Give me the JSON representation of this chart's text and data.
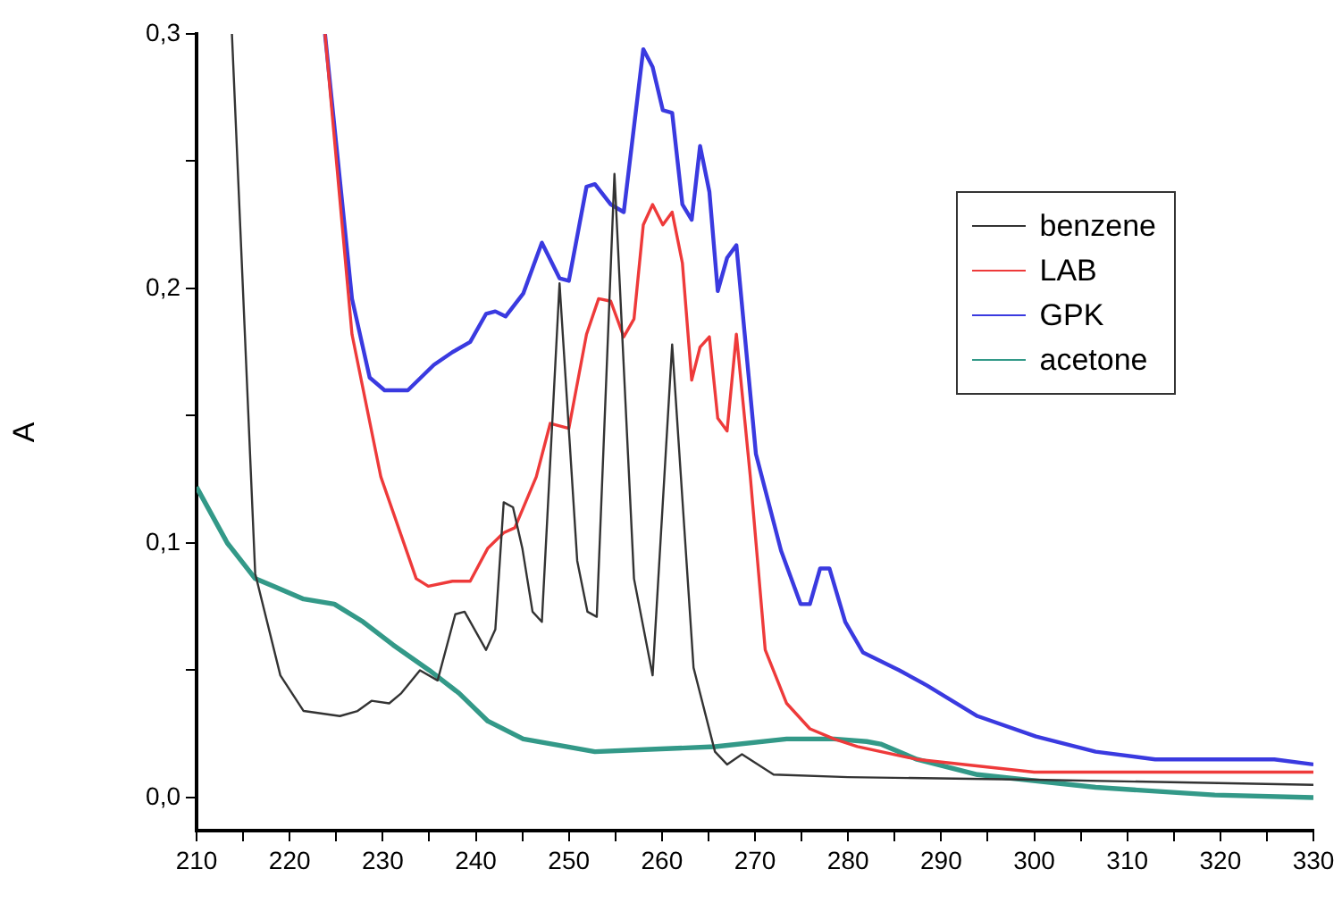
{
  "chart_data": {
    "type": "line",
    "ylabel": "A",
    "xlim": [
      210,
      330
    ],
    "ylim": [
      -0.013,
      0.3
    ],
    "xticks": [
      210,
      {
        "value": 215,
        "label": null
      },
      220,
      {
        "value": 225,
        "label": null
      },
      230,
      {
        "value": 235,
        "label": null
      },
      240,
      {
        "value": 245,
        "label": null
      },
      250,
      {
        "value": 255,
        "label": null
      },
      260,
      {
        "value": 265,
        "label": null
      },
      270,
      {
        "value": 275,
        "label": null
      },
      280,
      {
        "value": 285,
        "label": null
      },
      290,
      {
        "value": 295,
        "label": null
      },
      300,
      {
        "value": 305,
        "label": null
      },
      310,
      {
        "value": 315,
        "label": null
      },
      320,
      {
        "value": 325,
        "label": null
      },
      330
    ],
    "yticks": [
      {
        "value": 0,
        "label": "0,0"
      },
      {
        "value": 0.05,
        "label": null
      },
      {
        "value": 0.1,
        "label": "0,1"
      },
      {
        "value": 0.15,
        "label": null
      },
      {
        "value": 0.2,
        "label": "0,2"
      },
      {
        "value": 0.25,
        "label": null
      },
      {
        "value": 0.3,
        "label": "0,3"
      }
    ],
    "grid": false,
    "legend": "top right",
    "marker": "none",
    "line_style": "solid",
    "series": [
      {
        "name": "benzene",
        "color": "#333333",
        "x": [
          213.8,
          216.3,
          219,
          221.5,
          225.4,
          227.3,
          228.8,
          230.7,
          232,
          234,
          235.9,
          237.8,
          238.8,
          241.1,
          242.1,
          243,
          244,
          245,
          246.1,
          247.1,
          249,
          250.9,
          252,
          253,
          254.9,
          257,
          259,
          261.1,
          263.4,
          265.7,
          267,
          268.6,
          272,
          280,
          300,
          330
        ],
        "values": [
          0.3,
          0.088,
          0.048,
          0.034,
          0.032,
          0.034,
          0.038,
          0.037,
          0.041,
          0.05,
          0.046,
          0.072,
          0.073,
          0.058,
          0.066,
          0.116,
          0.114,
          0.098,
          0.073,
          0.069,
          0.202,
          0.093,
          0.073,
          0.071,
          0.245,
          0.086,
          0.048,
          0.178,
          0.051,
          0.018,
          0.013,
          0.017,
          0.009,
          0.008,
          0.007,
          0.005
        ]
      },
      {
        "name": "LAB",
        "color": "#ee3a3a",
        "x": [
          223.8,
          226.7,
          229.8,
          233.6,
          234.9,
          237.5,
          239.4,
          241.3,
          243,
          244.2,
          246.5,
          248,
          250,
          251.9,
          253.2,
          254.5,
          255.9,
          257,
          258,
          259,
          260.1,
          261.1,
          262.2,
          263.2,
          264.1,
          265.1,
          266,
          267,
          268,
          269.5,
          271.1,
          273.4,
          275.9,
          278.5,
          281,
          287.4,
          300,
          330
        ],
        "values": [
          0.3,
          0.182,
          0.126,
          0.086,
          0.083,
          0.085,
          0.085,
          0.098,
          0.104,
          0.106,
          0.126,
          0.147,
          0.145,
          0.182,
          0.196,
          0.195,
          0.181,
          0.188,
          0.225,
          0.233,
          0.225,
          0.23,
          0.21,
          0.164,
          0.177,
          0.181,
          0.149,
          0.144,
          0.182,
          0.126,
          0.058,
          0.037,
          0.027,
          0.023,
          0.02,
          0.015,
          0.01,
          0.01
        ]
      },
      {
        "name": "GPK",
        "color": "#3a3ae0",
        "x": [
          223.8,
          226.7,
          228.6,
          230.2,
          232.7,
          235.5,
          237.5,
          239.4,
          241.1,
          242.1,
          243.2,
          245.1,
          247.1,
          249,
          250,
          251.9,
          252.8,
          254.5,
          255.9,
          258,
          259,
          260.1,
          261.1,
          262.2,
          263.2,
          264.1,
          265.1,
          266,
          267,
          268,
          270.1,
          272.8,
          274.9,
          275.9,
          277,
          278,
          279.7,
          281.6,
          285.5,
          288.5,
          293.9,
          300.2,
          306.6,
          313,
          325.8,
          330
        ],
        "values": [
          0.3,
          0.196,
          0.165,
          0.16,
          0.16,
          0.17,
          0.175,
          0.179,
          0.19,
          0.191,
          0.189,
          0.198,
          0.218,
          0.204,
          0.203,
          0.24,
          0.241,
          0.233,
          0.23,
          0.294,
          0.287,
          0.27,
          0.269,
          0.233,
          0.227,
          0.256,
          0.238,
          0.199,
          0.212,
          0.217,
          0.135,
          0.097,
          0.076,
          0.076,
          0.09,
          0.09,
          0.069,
          0.057,
          0.05,
          0.044,
          0.032,
          0.024,
          0.018,
          0.015,
          0.015,
          0.013
        ]
      },
      {
        "name": "acetone",
        "color": "#339988",
        "x": [
          210,
          213.3,
          216.3,
          218.3,
          221.5,
          224.8,
          227.9,
          231.1,
          235,
          238.2,
          241.3,
          245.1,
          249.7,
          252.8,
          259.3,
          265.7,
          273.4,
          278.5,
          282,
          283.5,
          287.4,
          293.9,
          306.6,
          319.4,
          330
        ],
        "values": [
          0.122,
          0.1,
          0.086,
          0.083,
          0.078,
          0.076,
          0.069,
          0.06,
          0.05,
          0.041,
          0.03,
          0.023,
          0.02,
          0.018,
          0.019,
          0.02,
          0.023,
          0.023,
          0.022,
          0.021,
          0.015,
          0.009,
          0.004,
          0.001,
          0
        ]
      }
    ]
  }
}
